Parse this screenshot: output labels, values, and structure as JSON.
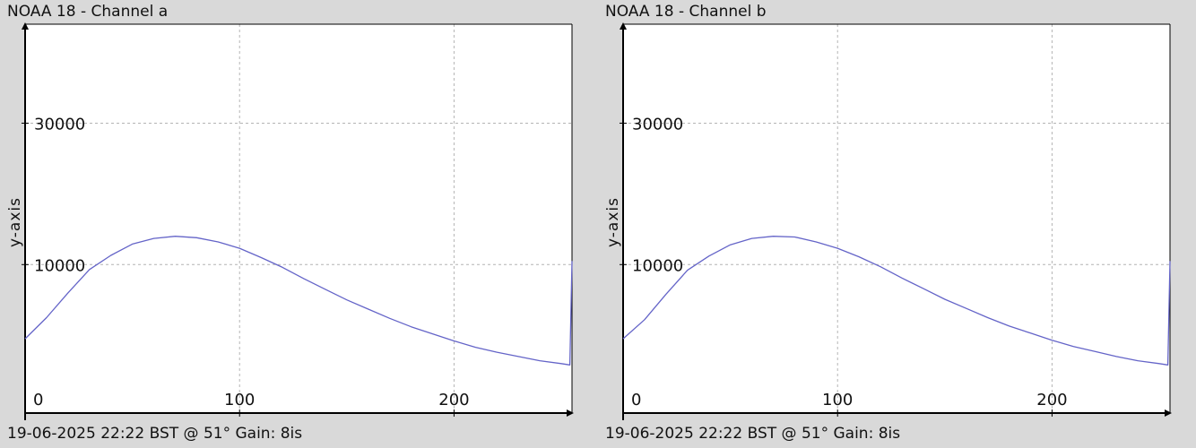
{
  "colors": {
    "background": "#d9d9d9",
    "plot_background": "#ffffff",
    "grid": "#b4b4b4",
    "series_line": "#6464c8",
    "axis": "#000000"
  },
  "panels": [
    {
      "title": "NOAA 18 - Channel a",
      "footer": "19-06-2025 22:22 BST @ 51° Gain: 8is"
    },
    {
      "title": "NOAA 18 - Channel b",
      "footer": "19-06-2025 22:22 BST @ 51° Gain: 8is"
    }
  ],
  "chart_data": [
    {
      "type": "line",
      "title": "NOAA 18 - Channel a",
      "xlabel": "",
      "ylabel": "y-axis",
      "xlim": [
        0,
        255
      ],
      "ylim": [
        -11000,
        44000
      ],
      "x_ticks": [
        0,
        100,
        200
      ],
      "y_ticks": [
        10000,
        30000
      ],
      "x_tick_labels": [
        "0",
        "100",
        "200"
      ],
      "y_tick_labels": [
        "10000",
        "30000"
      ],
      "grid": true,
      "series": [
        {
          "x": [
            0,
            10,
            20,
            30,
            40,
            50,
            60,
            70,
            80,
            90,
            100,
            110,
            120,
            130,
            140,
            150,
            160,
            170,
            180,
            190,
            200,
            210,
            220,
            230,
            240,
            250,
            254,
            255
          ],
          "y": [
            -500,
            2500,
            6000,
            9300,
            11300,
            12900,
            13700,
            14000,
            13800,
            13200,
            12300,
            11000,
            9600,
            8000,
            6500,
            5000,
            3700,
            2400,
            1200,
            200,
            -800,
            -1700,
            -2400,
            -3000,
            -3600,
            -4000,
            -4200,
            10500
          ],
          "color": "#6464c8"
        }
      ]
    },
    {
      "type": "line",
      "title": "NOAA 18 - Channel b",
      "xlabel": "",
      "ylabel": "y-axis",
      "xlim": [
        0,
        255
      ],
      "ylim": [
        -11000,
        44000
      ],
      "x_ticks": [
        0,
        100,
        200
      ],
      "y_ticks": [
        10000,
        30000
      ],
      "x_tick_labels": [
        "0",
        "100",
        "200"
      ],
      "y_tick_labels": [
        "10000",
        "30000"
      ],
      "grid": true,
      "series": [
        {
          "x": [
            0,
            10,
            20,
            30,
            40,
            50,
            60,
            70,
            80,
            90,
            100,
            110,
            120,
            130,
            140,
            150,
            160,
            170,
            180,
            190,
            200,
            210,
            220,
            230,
            240,
            250,
            254,
            255
          ],
          "y": [
            -500,
            2200,
            5800,
            9200,
            11200,
            12800,
            13700,
            14000,
            13900,
            13200,
            12300,
            11100,
            9700,
            8100,
            6600,
            5100,
            3800,
            2500,
            1300,
            300,
            -700,
            -1600,
            -2300,
            -3000,
            -3600,
            -4000,
            -4200,
            10500
          ],
          "color": "#6464c8"
        }
      ]
    }
  ]
}
